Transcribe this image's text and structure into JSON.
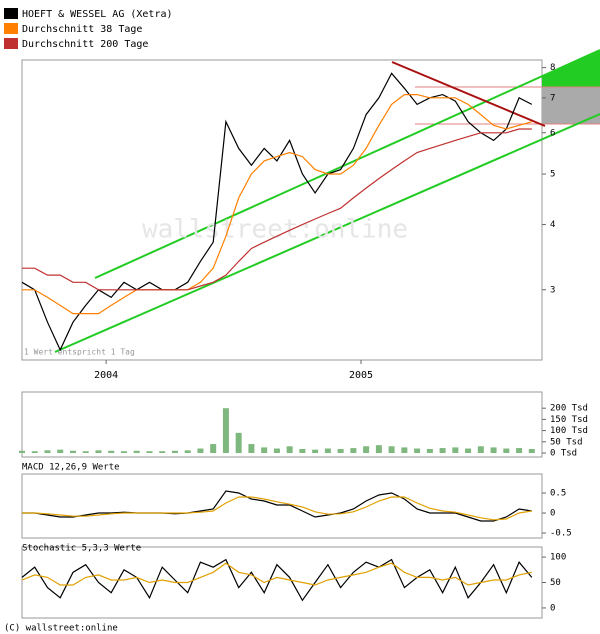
{
  "chart_data": [
    {
      "type": "line",
      "log": true,
      "x": [
        2003.67,
        2003.72,
        2003.77,
        2003.82,
        2003.87,
        2003.92,
        2003.97,
        2004.02,
        2004.07,
        2004.12,
        2004.17,
        2004.22,
        2004.27,
        2004.32,
        2004.37,
        2004.42,
        2004.47,
        2004.52,
        2004.57,
        2004.62,
        2004.67,
        2004.72,
        2004.77,
        2004.82,
        2004.87,
        2004.92,
        2004.97,
        2005.02,
        2005.07,
        2005.12,
        2005.17,
        2005.22,
        2005.27,
        2005.32,
        2005.37,
        2005.42,
        2005.47,
        2005.52,
        2005.57,
        2005.62,
        2005.67
      ],
      "xlim": [
        2003.67,
        2005.71
      ],
      "xticks": [
        {
          "value": 2004,
          "label": "2004"
        },
        {
          "value": 2005,
          "label": "2005"
        }
      ],
      "ylim": [
        2.2,
        8.2
      ],
      "yticks": [
        3,
        4,
        5,
        6,
        7,
        8
      ],
      "watermark": "wallstreet:online",
      "note": "1 Wert entspricht 1 Tag",
      "series": [
        {
          "name": "HOEFT & WESSEL AG (Xetra)",
          "color": "#000000",
          "values": [
            3.1,
            3.0,
            2.6,
            2.3,
            2.6,
            2.8,
            3.0,
            2.9,
            3.1,
            3.0,
            3.1,
            3.0,
            3.0,
            3.1,
            3.4,
            3.7,
            6.3,
            5.6,
            5.2,
            5.6,
            5.3,
            5.8,
            5.0,
            4.6,
            5.0,
            5.1,
            5.6,
            6.5,
            7.0,
            7.8,
            7.3,
            6.8,
            7.0,
            7.1,
            6.9,
            6.3,
            6.0,
            5.8,
            6.1,
            7.0,
            6.8
          ]
        },
        {
          "name": "Durchschnitt 38 Tage",
          "color": "#ff8000",
          "values": [
            3.0,
            3.0,
            2.9,
            2.8,
            2.7,
            2.7,
            2.7,
            2.8,
            2.9,
            3.0,
            3.0,
            3.0,
            3.0,
            3.0,
            3.1,
            3.3,
            3.8,
            4.5,
            5.0,
            5.3,
            5.4,
            5.5,
            5.4,
            5.1,
            5.0,
            5.0,
            5.2,
            5.6,
            6.2,
            6.8,
            7.1,
            7.1,
            7.0,
            7.0,
            7.0,
            6.8,
            6.5,
            6.2,
            6.1,
            6.2,
            6.3
          ]
        },
        {
          "name": "Durchschnitt 200 Tage",
          "color": "#c03030",
          "values": [
            3.3,
            3.3,
            3.2,
            3.2,
            3.1,
            3.1,
            3.0,
            3.0,
            3.0,
            3.0,
            3.0,
            3.0,
            3.0,
            3.0,
            3.05,
            3.1,
            3.2,
            3.4,
            3.6,
            3.7,
            3.8,
            3.9,
            4.0,
            4.1,
            4.2,
            4.3,
            4.5,
            4.7,
            4.9,
            5.1,
            5.3,
            5.5,
            5.6,
            5.7,
            5.8,
            5.9,
            6.0,
            6.0,
            6.0,
            6.1,
            6.1
          ]
        }
      ]
    },
    {
      "type": "bar",
      "color": "#7fb87f",
      "x": [
        2003.67,
        2003.72,
        2003.77,
        2003.82,
        2003.87,
        2003.92,
        2003.97,
        2004.02,
        2004.07,
        2004.12,
        2004.17,
        2004.22,
        2004.27,
        2004.32,
        2004.37,
        2004.42,
        2004.47,
        2004.52,
        2004.57,
        2004.62,
        2004.67,
        2004.72,
        2004.77,
        2004.82,
        2004.87,
        2004.92,
        2004.97,
        2005.02,
        2005.07,
        2005.12,
        2005.17,
        2005.22,
        2005.27,
        2005.32,
        2005.37,
        2005.42,
        2005.47,
        2005.52,
        2005.57,
        2005.62,
        2005.67
      ],
      "values": [
        10,
        8,
        12,
        15,
        10,
        8,
        12,
        10,
        8,
        10,
        8,
        8,
        10,
        12,
        20,
        40,
        200,
        90,
        40,
        25,
        20,
        30,
        18,
        15,
        20,
        18,
        22,
        30,
        35,
        30,
        25,
        20,
        18,
        22,
        25,
        20,
        30,
        25,
        20,
        22,
        18
      ],
      "ylim": [
        0,
        250
      ],
      "yticks": [
        {
          "value": 0,
          "label": "0 Tsd"
        },
        {
          "value": 50,
          "label": "50 Tsd"
        },
        {
          "value": 100,
          "label": "100 Tsd"
        },
        {
          "value": 150,
          "label": "150 Tsd"
        },
        {
          "value": 200,
          "label": "200 Tsd"
        }
      ]
    },
    {
      "type": "line",
      "title": "MACD 12,26,9 Werte",
      "x": [
        2003.67,
        2003.72,
        2003.77,
        2003.82,
        2003.87,
        2003.92,
        2003.97,
        2004.02,
        2004.07,
        2004.12,
        2004.17,
        2004.22,
        2004.27,
        2004.32,
        2004.37,
        2004.42,
        2004.47,
        2004.52,
        2004.57,
        2004.62,
        2004.67,
        2004.72,
        2004.77,
        2004.82,
        2004.87,
        2004.92,
        2004.97,
        2005.02,
        2005.07,
        2005.12,
        2005.17,
        2005.22,
        2005.27,
        2005.32,
        2005.37,
        2005.42,
        2005.47,
        2005.52,
        2005.57,
        2005.62,
        2005.67
      ],
      "ylim": [
        -0.6,
        0.95
      ],
      "yticks": [
        -0.5,
        0.0,
        0.5
      ],
      "series": [
        {
          "color": "#000000",
          "values": [
            0,
            0,
            -0.05,
            -0.1,
            -0.1,
            -0.05,
            0,
            0,
            0.02,
            0,
            0,
            0,
            -0.02,
            0,
            0.05,
            0.1,
            0.55,
            0.5,
            0.35,
            0.3,
            0.2,
            0.2,
            0.05,
            -0.1,
            -0.05,
            0,
            0.1,
            0.3,
            0.45,
            0.5,
            0.35,
            0.1,
            0,
            0,
            0,
            -0.1,
            -0.2,
            -0.2,
            -0.1,
            0.1,
            0.05
          ]
        },
        {
          "color": "#e0a000",
          "values": [
            0,
            0,
            -0.02,
            -0.05,
            -0.08,
            -0.08,
            -0.05,
            -0.02,
            0,
            0,
            0,
            0,
            0,
            0,
            0.02,
            0.05,
            0.25,
            0.4,
            0.4,
            0.35,
            0.28,
            0.22,
            0.15,
            0.03,
            -0.03,
            -0.02,
            0.03,
            0.15,
            0.3,
            0.4,
            0.4,
            0.25,
            0.12,
            0.05,
            0.02,
            -0.05,
            -0.12,
            -0.17,
            -0.15,
            0,
            0.05
          ]
        }
      ]
    },
    {
      "type": "line",
      "title": "Stochastic 5,3,3 Werte",
      "x": [
        2003.67,
        2003.72,
        2003.77,
        2003.82,
        2003.87,
        2003.92,
        2003.97,
        2004.02,
        2004.07,
        2004.12,
        2004.17,
        2004.22,
        2004.27,
        2004.32,
        2004.37,
        2004.42,
        2004.47,
        2004.52,
        2004.57,
        2004.62,
        2004.67,
        2004.72,
        2004.77,
        2004.82,
        2004.87,
        2004.92,
        2004.97,
        2005.02,
        2005.07,
        2005.12,
        2005.17,
        2005.22,
        2005.27,
        2005.32,
        2005.37,
        2005.42,
        2005.47,
        2005.52,
        2005.57,
        2005.62,
        2005.67
      ],
      "ylim": [
        -8,
        108
      ],
      "yticks": [
        0,
        50,
        100
      ],
      "series": [
        {
          "color": "#000000",
          "values": [
            60,
            80,
            40,
            20,
            70,
            85,
            50,
            30,
            75,
            60,
            20,
            80,
            55,
            30,
            90,
            80,
            95,
            40,
            70,
            30,
            85,
            60,
            15,
            50,
            85,
            40,
            70,
            90,
            80,
            95,
            40,
            60,
            75,
            30,
            80,
            20,
            50,
            85,
            30,
            90,
            60
          ]
        },
        {
          "color": "#e0a000",
          "values": [
            55,
            65,
            60,
            45,
            45,
            60,
            65,
            55,
            55,
            60,
            50,
            55,
            50,
            50,
            60,
            70,
            88,
            70,
            65,
            50,
            60,
            55,
            50,
            45,
            55,
            60,
            65,
            70,
            80,
            88,
            70,
            60,
            60,
            55,
            60,
            45,
            50,
            55,
            55,
            65,
            70
          ]
        }
      ]
    }
  ],
  "footer": "(C) wallstreet:online"
}
